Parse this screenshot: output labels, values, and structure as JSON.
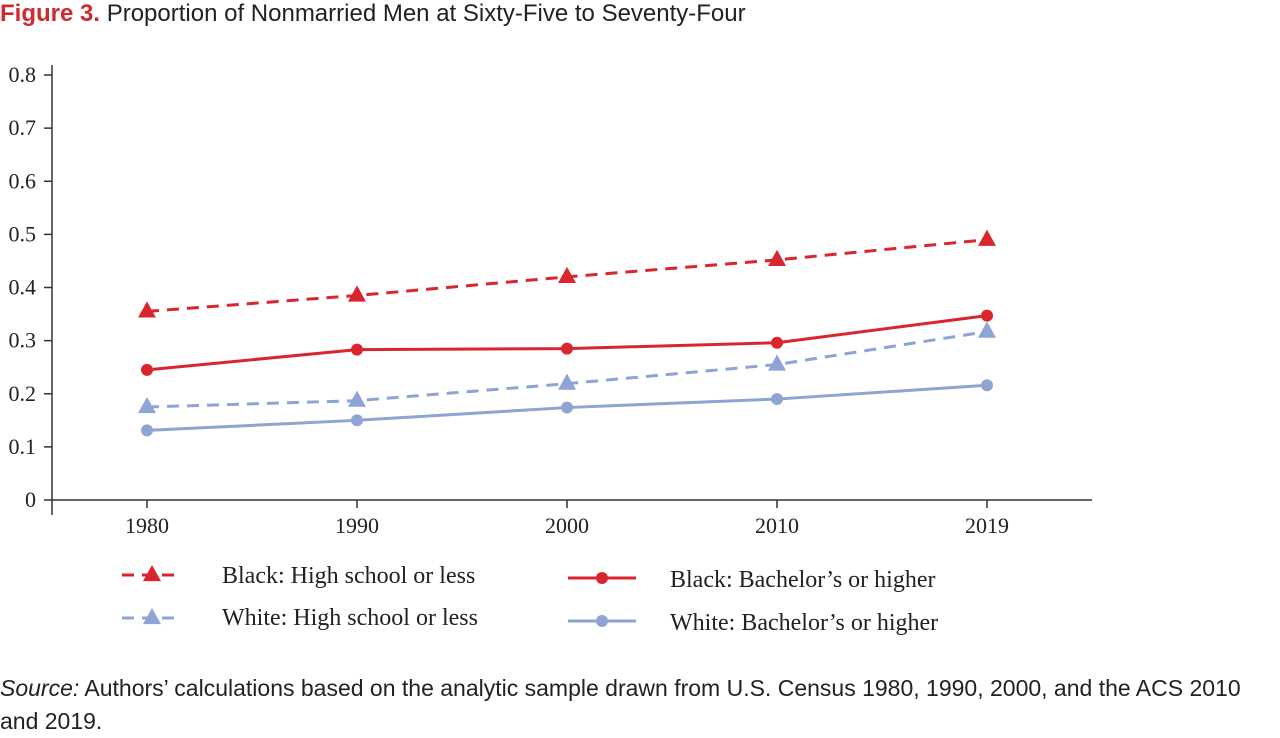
{
  "figure": {
    "label": "Figure 3.",
    "title": "Proportion of Nonmarried Men at Sixty-Five to Seventy-Four"
  },
  "source": {
    "label": "Source:",
    "text": "Authors’ calculations based on the analytic sample drawn from U.S. Census 1980, 1990, 2000, and the ACS 2010 and 2019."
  },
  "colors": {
    "red": "#d9262e",
    "blue": "#8ea4d4",
    "axis": "#333333"
  },
  "chart_data": {
    "type": "line",
    "title": "Proportion of Nonmarried Men at Sixty-Five to Seventy-Four",
    "xlabel": "",
    "ylabel": "",
    "categories": [
      "1980",
      "1990",
      "2000",
      "2010",
      "2019"
    ],
    "yticks": [
      "0",
      "0.1",
      "0.2",
      "0.3",
      "0.4",
      "0.5",
      "0.6",
      "0.7",
      "0.8"
    ],
    "ylim": [
      0,
      0.8
    ],
    "grid": false,
    "legend_position": "bottom",
    "series": [
      {
        "name": "Black: High school or less",
        "values": [
          0.355,
          0.385,
          0.42,
          0.452,
          0.49
        ],
        "color": "#d9262e",
        "dash": true,
        "marker": "triangle"
      },
      {
        "name": "Black: Bachelor’s or higher",
        "values": [
          0.245,
          0.283,
          0.285,
          0.296,
          0.347
        ],
        "color": "#d9262e",
        "dash": false,
        "marker": "circle"
      },
      {
        "name": "White: High school or less",
        "values": [
          0.175,
          0.187,
          0.219,
          0.255,
          0.317
        ],
        "color": "#8ea4d4",
        "dash": true,
        "marker": "triangle"
      },
      {
        "name": "White: Bachelor’s or higher",
        "values": [
          0.131,
          0.15,
          0.174,
          0.19,
          0.216
        ],
        "color": "#8ea4d4",
        "dash": false,
        "marker": "circle"
      }
    ]
  }
}
